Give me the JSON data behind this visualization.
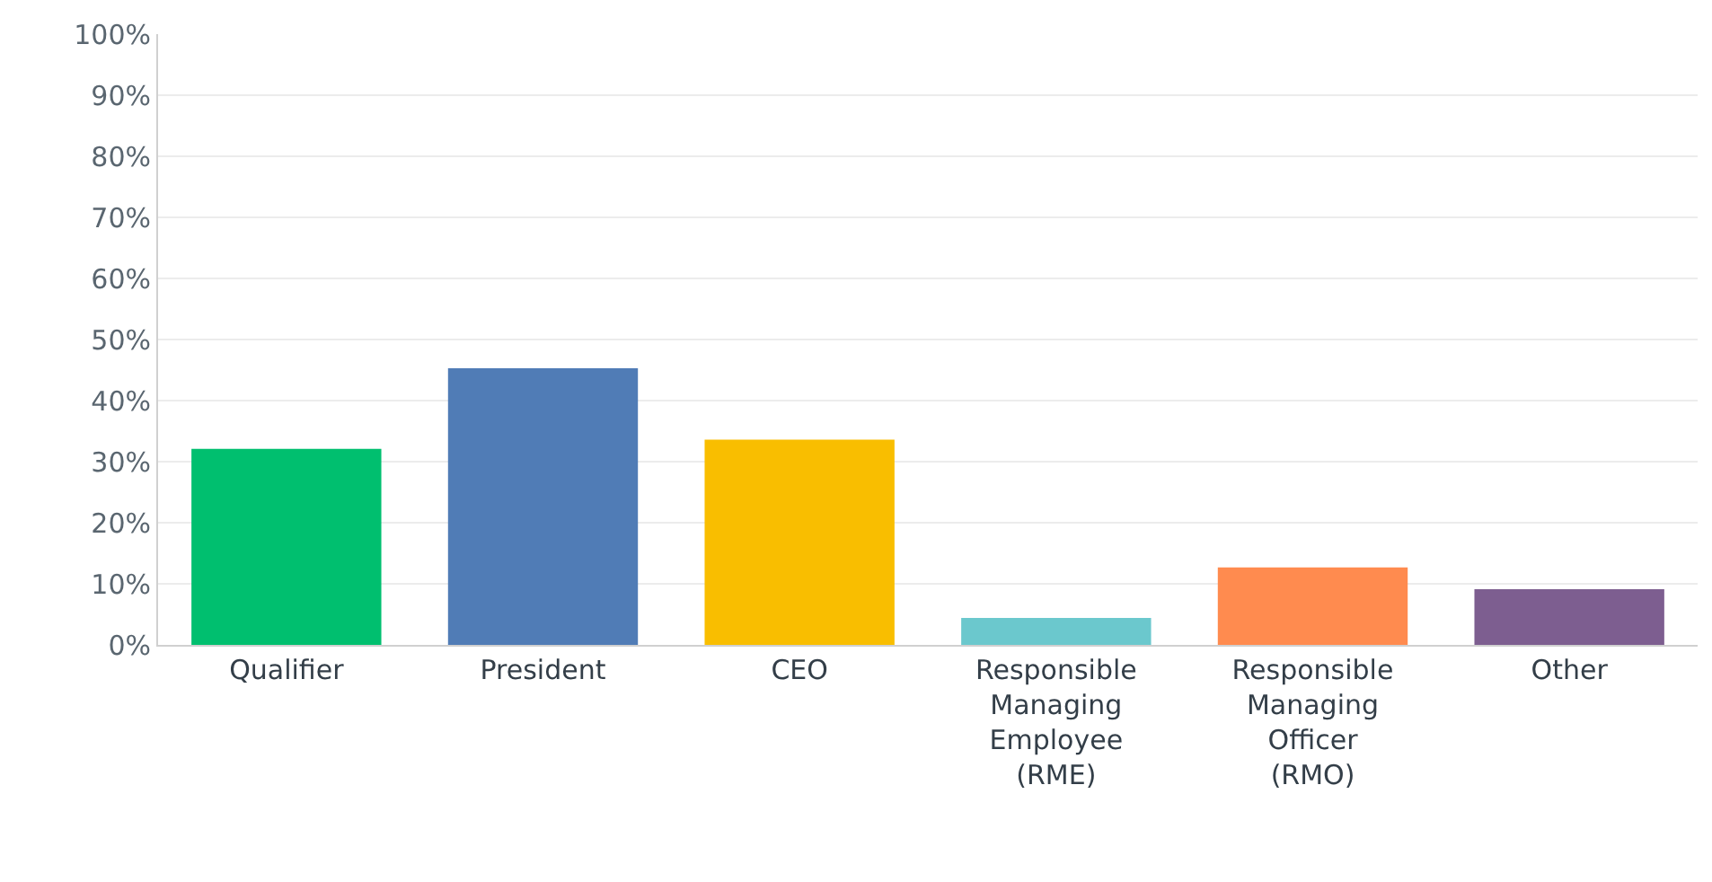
{
  "chart_data": {
    "type": "bar",
    "categories": [
      "Qualifier",
      "President",
      "CEO",
      "Responsible Managing Employee (RME)",
      "Responsible Managing Officer (RMO)",
      "Other"
    ],
    "values": [
      32.1,
      45.3,
      33.6,
      4.4,
      12.7,
      9.1
    ],
    "colors": [
      "#00bf6f",
      "#507cb6",
      "#f9be00",
      "#6bc8cd",
      "#ff8b4f",
      "#7d5e90"
    ],
    "ylim": [
      0,
      100
    ],
    "yticks": [
      {
        "value": 0,
        "label": "0%"
      },
      {
        "value": 10,
        "label": "10%"
      },
      {
        "value": 20,
        "label": "20%"
      },
      {
        "value": 30,
        "label": "30%"
      },
      {
        "value": 40,
        "label": "40%"
      },
      {
        "value": 50,
        "label": "50%"
      },
      {
        "value": 60,
        "label": "60%"
      },
      {
        "value": 70,
        "label": "70%"
      },
      {
        "value": 80,
        "label": "80%"
      },
      {
        "value": 90,
        "label": "90%"
      },
      {
        "value": 100,
        "label": "100%"
      }
    ],
    "grid": "y"
  }
}
